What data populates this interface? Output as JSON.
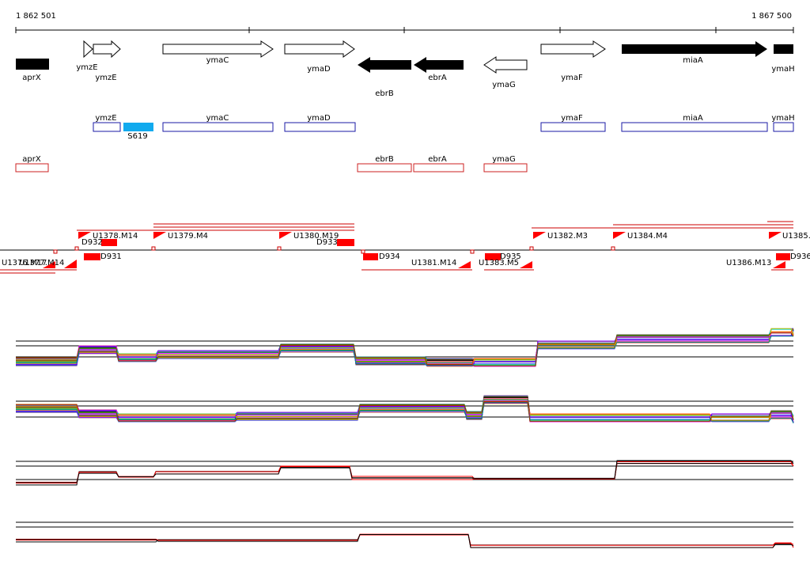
{
  "ruler": {
    "start_label": "1 862 501",
    "end_label": "1 867 500"
  },
  "colors": {
    "gene_fill": "#000000",
    "gene_outline": "#000000",
    "plus_box": "#1a1aa6",
    "minus_box": "#cc2222",
    "segment_fill": "#ff0000",
    "highlight_box": "#11aaee",
    "tracks_bg": "#ffffff"
  },
  "genes": [
    {
      "label": "aprX",
      "style": "filled",
      "dir": "none"
    },
    {
      "label": "ymzE",
      "style": "outline",
      "dir": "right"
    },
    {
      "label": "ymzE",
      "style": "outline",
      "dir": "right"
    },
    {
      "label": "ymaC",
      "style": "outline",
      "dir": "right"
    },
    {
      "label": "ymaD",
      "style": "outline",
      "dir": "right"
    },
    {
      "label": "ebrB",
      "style": "filled",
      "dir": "left"
    },
    {
      "label": "ebrA",
      "style": "filled",
      "dir": "left"
    },
    {
      "label": "ymaG",
      "style": "outline",
      "dir": "left"
    },
    {
      "label": "ymaF",
      "style": "outline",
      "dir": "right"
    },
    {
      "label": "miaA",
      "style": "filled",
      "dir": "right"
    },
    {
      "label": "ymaH",
      "style": "filled",
      "dir": "none"
    }
  ],
  "plus_annotations": [
    "ymzE",
    "S619",
    "ymaC",
    "ymaD",
    "ymaF",
    "miaA",
    "ymaH"
  ],
  "minus_annotations": [
    "aprX",
    "ebrB",
    "ebrA",
    "ymaG"
  ],
  "segments_upper": [
    "U1378.M14",
    "D932",
    "U1379.M4",
    "U1380.M19",
    "D933",
    "U1382.M3",
    "U1384.M4",
    "U1385."
  ],
  "segments_lower": [
    "U1376.M17",
    "U1377.M14",
    "D931",
    "D934",
    "U1381.M14",
    "D935",
    "U1383.M5",
    "U1386.M13",
    "D936"
  ]
}
